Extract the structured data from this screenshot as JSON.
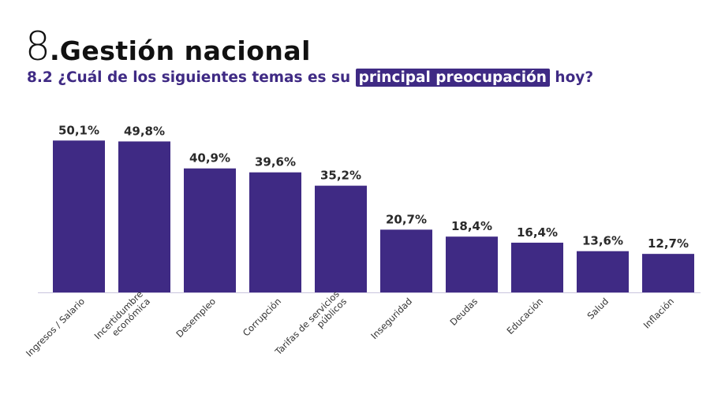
{
  "header": {
    "number": "8",
    "dot": ".",
    "title": "Gestión nacional",
    "question_prefix": "8.2 ¿Cuál de los siguientes temas es su ",
    "question_highlight": "principal preocupación",
    "question_suffix": " hoy?"
  },
  "colors": {
    "bar": "#3f2a84",
    "accent": "#3f2a84",
    "axis": "#c9c4dd"
  },
  "chart_data": {
    "type": "bar",
    "categories": [
      [
        "Ingresos / Salario"
      ],
      [
        "Incertidumbre",
        "económica"
      ],
      [
        "Desempleo"
      ],
      [
        "Corrupción"
      ],
      [
        "Tarifas de servicios",
        "públicos"
      ],
      [
        "Inseguridad"
      ],
      [
        "Deudas"
      ],
      [
        "Educación"
      ],
      [
        "Salud"
      ],
      [
        "Inflación"
      ]
    ],
    "values": [
      50.1,
      49.8,
      40.9,
      39.6,
      35.2,
      20.7,
      18.4,
      16.4,
      13.6,
      12.7
    ],
    "value_labels": [
      "50,1%",
      "49,8%",
      "40,9%",
      "39,6%",
      "35,2%",
      "20,7%",
      "18,4%",
      "16,4%",
      "13,6%",
      "12,7%"
    ],
    "ylim": [
      0,
      52
    ],
    "grid": false,
    "legend": "none"
  }
}
